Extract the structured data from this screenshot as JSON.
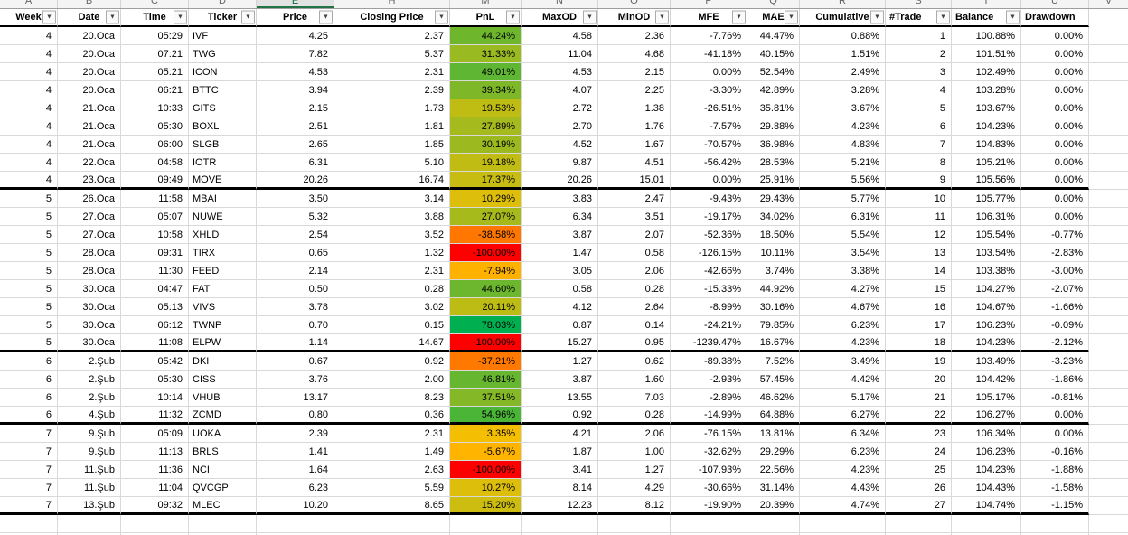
{
  "sheet": {
    "kind": "excel-grid",
    "active_column_letter": "E"
  },
  "colors": {
    "grid_line": "#D9D9D9",
    "group_separator": "#000000",
    "selected_column_underline": "#217346",
    "pnl_scale_min_red": "#FF0000",
    "pnl_scale_mid_amber": "#FFC000",
    "pnl_scale_max_green": "#00B050"
  },
  "filler_letter": "V",
  "columns": [
    {
      "key": "week",
      "letter": "A",
      "label": "Week",
      "filter": true,
      "selected": false
    },
    {
      "key": "date",
      "letter": "B",
      "label": "Date",
      "filter": true,
      "selected": false
    },
    {
      "key": "time",
      "letter": "C",
      "label": "Time",
      "filter": true,
      "selected": false
    },
    {
      "key": "ticker",
      "letter": "D",
      "label": "Ticker",
      "filter": true,
      "selected": false
    },
    {
      "key": "price",
      "letter": "E",
      "label": "Price",
      "filter": true,
      "selected": true
    },
    {
      "key": "closing-price",
      "letter": "H",
      "label": "Closing Price",
      "filter": true,
      "selected": false
    },
    {
      "key": "pnl",
      "letter": "M",
      "label": "PnL",
      "filter": true,
      "selected": false
    },
    {
      "key": "maxod",
      "letter": "N",
      "label": "MaxOD",
      "filter": true,
      "selected": false
    },
    {
      "key": "minod",
      "letter": "O",
      "label": "MinOD",
      "filter": true,
      "selected": false
    },
    {
      "key": "mfe",
      "letter": "P",
      "label": "MFE",
      "filter": true,
      "selected": false
    },
    {
      "key": "mae",
      "letter": "Q",
      "label": "MAE",
      "filter": true,
      "selected": false
    },
    {
      "key": "cumulative",
      "letter": "R",
      "label": "Cumulative",
      "filter": true,
      "selected": false
    },
    {
      "key": "trade",
      "letter": "S",
      "label": "#Trade",
      "filter": true,
      "selected": false
    },
    {
      "key": "balance",
      "letter": "T",
      "label": "Balance",
      "filter": true,
      "selected": false
    },
    {
      "key": "drawdown",
      "letter": "U",
      "label": "Drawdown",
      "filter": false,
      "selected": false
    }
  ],
  "rows": [
    {
      "cells": [
        "4",
        "20.Oca",
        "05:29",
        "IVF",
        "4.25",
        "2.37",
        "44.24%",
        "4.58",
        "2.36",
        "-7.76%",
        "44.47%",
        "0.88%",
        "1",
        "100.88%",
        "0.00%"
      ],
      "pnl_color": "#6EB72D",
      "group_end": false
    },
    {
      "cells": [
        "4",
        "20.Oca",
        "07:21",
        "TWG",
        "7.82",
        "5.37",
        "31.33%",
        "11.04",
        "4.68",
        "-41.18%",
        "40.15%",
        "1.51%",
        "2",
        "101.51%",
        "0.00%"
      ],
      "pnl_color": "#99BA20",
      "group_end": false
    },
    {
      "cells": [
        "4",
        "20.Oca",
        "05:21",
        "ICON",
        "4.53",
        "2.31",
        "49.01%",
        "4.53",
        "2.15",
        "0.00%",
        "52.54%",
        "2.49%",
        "3",
        "102.49%",
        "0.00%"
      ],
      "pnl_color": "#5FB632",
      "group_end": false
    },
    {
      "cells": [
        "4",
        "20.Oca",
        "06:21",
        "BTTC",
        "3.94",
        "2.39",
        "39.34%",
        "4.07",
        "2.25",
        "-3.30%",
        "42.89%",
        "3.28%",
        "4",
        "103.28%",
        "0.00%"
      ],
      "pnl_color": "#7EB828",
      "group_end": false
    },
    {
      "cells": [
        "4",
        "21.Oca",
        "10:33",
        "GITS",
        "2.15",
        "1.73",
        "19.53%",
        "2.72",
        "1.38",
        "-26.51%",
        "35.81%",
        "3.67%",
        "5",
        "103.67%",
        "0.00%"
      ],
      "pnl_color": "#BFBC14",
      "group_end": false
    },
    {
      "cells": [
        "4",
        "21.Oca",
        "05:30",
        "BOXL",
        "2.51",
        "1.81",
        "27.89%",
        "2.70",
        "1.76",
        "-7.57%",
        "29.88%",
        "4.23%",
        "6",
        "104.23%",
        "0.00%"
      ],
      "pnl_color": "#A4BA1D",
      "group_end": false
    },
    {
      "cells": [
        "4",
        "21.Oca",
        "06:00",
        "SLGB",
        "2.65",
        "1.85",
        "30.19%",
        "4.52",
        "1.67",
        "-70.57%",
        "36.98%",
        "4.83%",
        "7",
        "104.83%",
        "0.00%"
      ],
      "pnl_color": "#9CBA1F",
      "group_end": false
    },
    {
      "cells": [
        "4",
        "22.Oca",
        "04:58",
        "IOTR",
        "6.31",
        "5.10",
        "19.18%",
        "9.87",
        "4.51",
        "-56.42%",
        "28.53%",
        "5.21%",
        "8",
        "105.21%",
        "0.00%"
      ],
      "pnl_color": "#C0BC14",
      "group_end": false
    },
    {
      "cells": [
        "4",
        "23.Oca",
        "09:49",
        "MOVE",
        "20.26",
        "16.74",
        "17.37%",
        "20.26",
        "15.01",
        "0.00%",
        "25.91%",
        "5.56%",
        "9",
        "105.56%",
        "0.00%"
      ],
      "pnl_color": "#C6BC12",
      "group_end": true
    },
    {
      "cells": [
        "5",
        "26.Oca",
        "11:58",
        "MBAI",
        "3.50",
        "3.14",
        "10.29%",
        "3.83",
        "2.47",
        "-9.43%",
        "29.43%",
        "5.77%",
        "10",
        "105.77%",
        "0.00%"
      ],
      "pnl_color": "#DDBE0B",
      "group_end": false
    },
    {
      "cells": [
        "5",
        "27.Oca",
        "05:07",
        "NUWE",
        "5.32",
        "3.88",
        "27.07%",
        "6.34",
        "3.51",
        "-19.17%",
        "34.02%",
        "6.31%",
        "11",
        "106.31%",
        "0.00%"
      ],
      "pnl_color": "#A7BA1C",
      "group_end": false
    },
    {
      "cells": [
        "5",
        "27.Oca",
        "10:58",
        "XHLD",
        "2.54",
        "3.52",
        "-38.58%",
        "3.87",
        "2.07",
        "-52.36%",
        "18.50%",
        "5.54%",
        "12",
        "105.54%",
        "-0.77%"
      ],
      "pnl_color": "#FF7600",
      "group_end": false
    },
    {
      "cells": [
        "5",
        "28.Oca",
        "09:31",
        "TIRX",
        "0.65",
        "1.32",
        "-100.00%",
        "1.47",
        "0.58",
        "-126.15%",
        "10.11%",
        "3.54%",
        "13",
        "103.54%",
        "-2.83%"
      ],
      "pnl_color": "#FF0000",
      "group_end": false
    },
    {
      "cells": [
        "5",
        "28.Oca",
        "11:30",
        "FEED",
        "2.14",
        "2.31",
        "-7.94%",
        "3.05",
        "2.06",
        "-42.66%",
        "3.74%",
        "3.38%",
        "14",
        "103.38%",
        "-3.00%"
      ],
      "pnl_color": "#FFB100",
      "group_end": false
    },
    {
      "cells": [
        "5",
        "30.Oca",
        "04:47",
        "FAT",
        "0.50",
        "0.28",
        "44.60%",
        "0.58",
        "0.28",
        "-15.33%",
        "44.92%",
        "4.27%",
        "15",
        "104.27%",
        "-2.07%"
      ],
      "pnl_color": "#6DB72E",
      "group_end": false
    },
    {
      "cells": [
        "5",
        "30.Oca",
        "05:13",
        "VIVS",
        "3.78",
        "3.02",
        "20.11%",
        "4.12",
        "2.64",
        "-8.99%",
        "30.16%",
        "4.67%",
        "16",
        "104.67%",
        "-1.66%"
      ],
      "pnl_color": "#BDBC15",
      "group_end": false
    },
    {
      "cells": [
        "5",
        "30.Oca",
        "06:12",
        "TWNP",
        "0.70",
        "0.15",
        "78.03%",
        "0.87",
        "0.14",
        "-24.21%",
        "79.85%",
        "6.23%",
        "17",
        "106.23%",
        "-0.09%"
      ],
      "pnl_color": "#00B050",
      "group_end": false
    },
    {
      "cells": [
        "5",
        "30.Oca",
        "11:08",
        "ELPW",
        "1.14",
        "14.67",
        "-100.00%",
        "15.27",
        "0.95",
        "-1239.47%",
        "16.67%",
        "4.23%",
        "18",
        "104.23%",
        "-2.12%"
      ],
      "pnl_color": "#FF0000",
      "group_end": true
    },
    {
      "cells": [
        "6",
        "2.Şub",
        "05:42",
        "DKI",
        "0.67",
        "0.92",
        "-37.21%",
        "1.27",
        "0.62",
        "-89.38%",
        "7.52%",
        "3.49%",
        "19",
        "103.49%",
        "-3.23%"
      ],
      "pnl_color": "#FF7900",
      "group_end": false
    },
    {
      "cells": [
        "6",
        "2.Şub",
        "05:30",
        "CISS",
        "3.76",
        "2.00",
        "46.81%",
        "3.87",
        "1.60",
        "-2.93%",
        "57.45%",
        "4.42%",
        "20",
        "104.42%",
        "-1.86%"
      ],
      "pnl_color": "#66B630",
      "group_end": false
    },
    {
      "cells": [
        "6",
        "2.Şub",
        "10:14",
        "VHUB",
        "13.17",
        "8.23",
        "37.51%",
        "13.55",
        "7.03",
        "-2.89%",
        "46.62%",
        "5.17%",
        "21",
        "105.17%",
        "-0.81%"
      ],
      "pnl_color": "#84B826",
      "group_end": false
    },
    {
      "cells": [
        "6",
        "4.Şub",
        "11:32",
        "ZCMD",
        "0.80",
        "0.36",
        "54.96%",
        "0.92",
        "0.28",
        "-14.99%",
        "64.88%",
        "6.27%",
        "22",
        "106.27%",
        "0.00%"
      ],
      "pnl_color": "#4BB538",
      "group_end": true
    },
    {
      "cells": [
        "7",
        "9.Şub",
        "05:09",
        "UOKA",
        "2.39",
        "2.31",
        "3.35%",
        "4.21",
        "2.06",
        "-76.15%",
        "13.81%",
        "6.34%",
        "23",
        "106.34%",
        "0.00%"
      ],
      "pnl_color": "#F4BF03",
      "group_end": false
    },
    {
      "cells": [
        "7",
        "9.Şub",
        "11:13",
        "BRLS",
        "1.41",
        "1.49",
        "-5.67%",
        "1.87",
        "1.00",
        "-32.62%",
        "29.29%",
        "6.23%",
        "24",
        "106.23%",
        "-0.16%"
      ],
      "pnl_color": "#FFB500",
      "group_end": false
    },
    {
      "cells": [
        "7",
        "11.Şub",
        "11:36",
        "NCI",
        "1.64",
        "2.63",
        "-100.00%",
        "3.41",
        "1.27",
        "-107.93%",
        "22.56%",
        "4.23%",
        "25",
        "104.23%",
        "-1.88%"
      ],
      "pnl_color": "#FF0000",
      "group_end": false
    },
    {
      "cells": [
        "7",
        "11.Şub",
        "11:04",
        "QVCGP",
        "6.23",
        "5.59",
        "10.27%",
        "8.14",
        "4.29",
        "-30.66%",
        "31.14%",
        "4.43%",
        "26",
        "104.43%",
        "-1.58%"
      ],
      "pnl_color": "#DDBE0B",
      "group_end": false
    },
    {
      "cells": [
        "7",
        "13.Şub",
        "09:32",
        "MLEC",
        "10.20",
        "8.65",
        "15.20%",
        "12.23",
        "8.12",
        "-19.90%",
        "20.39%",
        "4.74%",
        "27",
        "104.74%",
        "-1.15%"
      ],
      "pnl_color": "#CDBD10",
      "group_end": true
    }
  ]
}
